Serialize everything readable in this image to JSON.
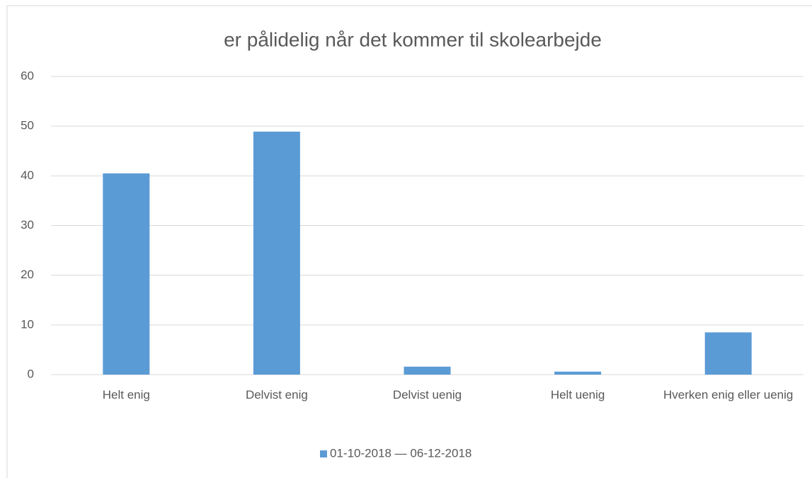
{
  "chart_data": {
    "type": "bar",
    "title": "er pålidelig når det kommer til skolearbejde",
    "categories": [
      "Helt enig",
      "Delvist enig",
      "Delvist uenig",
      "Helt uenig",
      "Hverken enig eller uenig"
    ],
    "series": [
      {
        "name": "01-10-2018 — 06-12-2018",
        "color": "#5b9bd5",
        "values": [
          40.5,
          48.9,
          1.6,
          0.6,
          8.5
        ]
      }
    ],
    "ylim": [
      0,
      60
    ],
    "yticks": [
      0,
      10,
      20,
      30,
      40,
      50,
      60
    ],
    "grid": true,
    "legend": "bottom"
  }
}
